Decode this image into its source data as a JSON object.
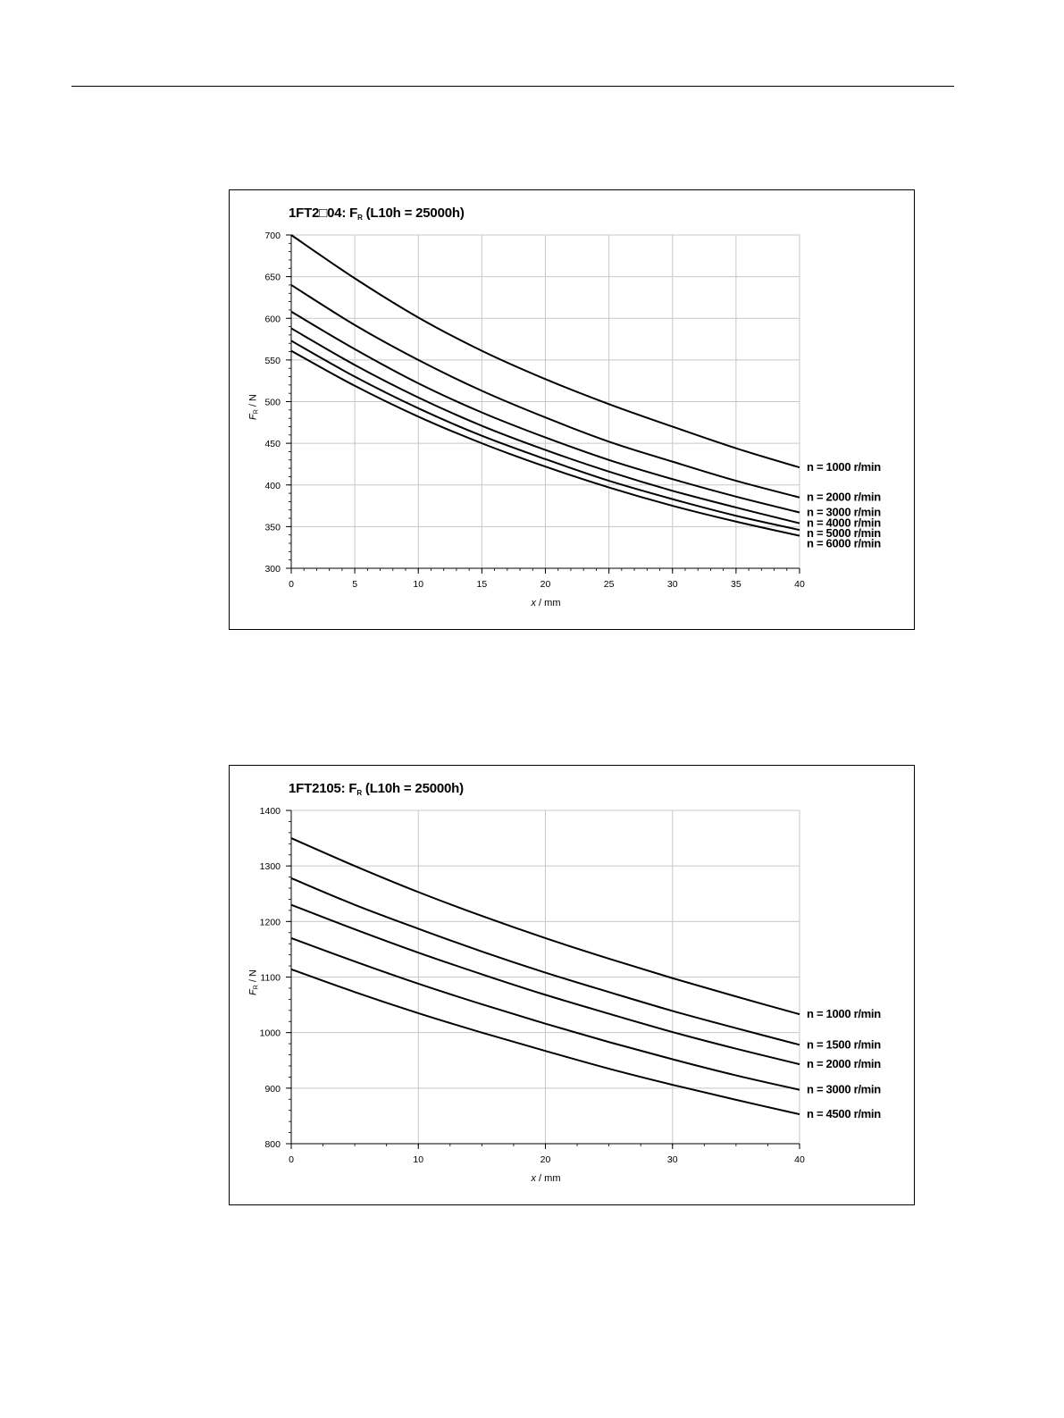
{
  "chart_data": [
    {
      "type": "line",
      "title_main": "1FT2□04: F",
      "title_sub": "R",
      "title_tail": " (L10h = 25000h)",
      "ylabel_main": "F",
      "ylabel_sub": "R",
      "ylabel_tail": " / N",
      "xlabel_main": "x",
      "xlabel_tail": " / mm",
      "xlim": [
        0,
        40
      ],
      "ylim": [
        300,
        700
      ],
      "xticks": [
        0,
        5,
        10,
        15,
        20,
        25,
        30,
        35,
        40
      ],
      "yticks": [
        300,
        350,
        400,
        450,
        500,
        550,
        600,
        650,
        700
      ],
      "x_minor": 1,
      "y_minor": 10,
      "grid": true,
      "x": [
        0,
        5,
        10,
        15,
        20,
        25,
        30,
        35,
        40
      ],
      "series": [
        {
          "name": "n = 1000 r/min",
          "values": [
            700,
            648,
            601,
            561,
            527,
            497,
            470,
            444,
            421
          ]
        },
        {
          "name": "n = 2000 r/min",
          "values": [
            640,
            592,
            550,
            513,
            481,
            452,
            428,
            405,
            385
          ]
        },
        {
          "name": "n = 3000 r/min",
          "values": [
            608,
            563,
            522,
            487,
            457,
            430,
            407,
            386,
            367
          ]
        },
        {
          "name": "n = 4000 r/min",
          "values": [
            588,
            544,
            505,
            471,
            442,
            416,
            393,
            373,
            354
          ]
        },
        {
          "name": "n = 5000 r/min",
          "values": [
            573,
            530,
            492,
            459,
            431,
            405,
            383,
            363,
            346
          ]
        },
        {
          "name": "n = 6000 r/min",
          "values": [
            561,
            519,
            482,
            450,
            422,
            397,
            375,
            356,
            339
          ]
        }
      ]
    },
    {
      "type": "line",
      "title_main": "1FT2105: F",
      "title_sub": "R",
      "title_tail": " (L10h = 25000h)",
      "ylabel_main": "F",
      "ylabel_sub": "R",
      "ylabel_tail": " / N",
      "xlabel_main": "x",
      "xlabel_tail": " / mm",
      "xlim": [
        0,
        40
      ],
      "ylim": [
        800,
        1400
      ],
      "xticks": [
        0,
        10,
        20,
        30,
        40
      ],
      "yticks": [
        800,
        900,
        1000,
        1100,
        1200,
        1300,
        1400
      ],
      "x_minor": 2.5,
      "y_minor": 20,
      "grid": true,
      "x": [
        0,
        5,
        10,
        15,
        20,
        25,
        30,
        35,
        40
      ],
      "series": [
        {
          "name": "n = 1000 r/min",
          "values": [
            1350,
            1300,
            1253,
            1210,
            1170,
            1133,
            1098,
            1065,
            1033
          ]
        },
        {
          "name": "n = 1500 r/min",
          "values": [
            1278,
            1230,
            1187,
            1146,
            1108,
            1073,
            1039,
            1008,
            978
          ]
        },
        {
          "name": "n = 2000 r/min",
          "values": [
            1230,
            1186,
            1144,
            1105,
            1068,
            1034,
            1001,
            971,
            943
          ]
        },
        {
          "name": "n = 3000 r/min",
          "values": [
            1170,
            1128,
            1088,
            1051,
            1016,
            983,
            952,
            923,
            897
          ]
        },
        {
          "name": "n = 4500 r/min",
          "values": [
            1114,
            1073,
            1035,
            1000,
            967,
            935,
            906,
            879,
            853
          ]
        }
      ]
    }
  ]
}
